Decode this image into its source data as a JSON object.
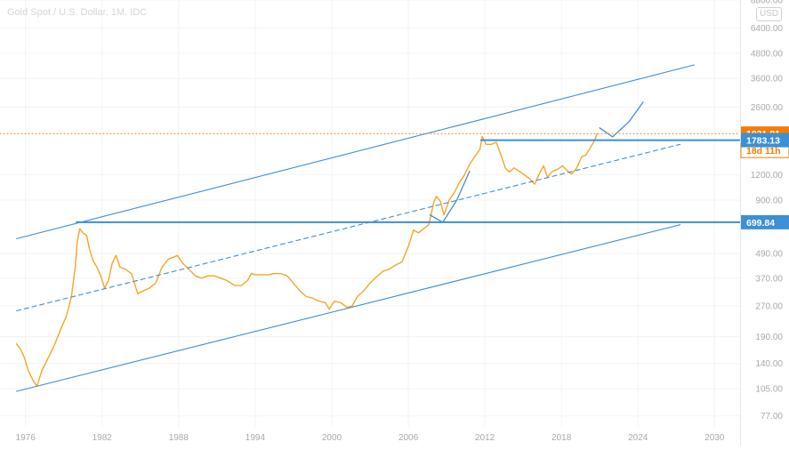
{
  "header": {
    "title": "Gold Spot / U.S. Dollar, 1M, IDC",
    "currency_badge": "USD"
  },
  "colors": {
    "price": "#f5a623",
    "channel": "#3d8fd6",
    "last_price_tag": "#f57c00",
    "countdown_tag": "#ffb74d",
    "level_tag": "#3d8fd6",
    "axis_text": "#a9a9a9"
  },
  "chart_data": {
    "type": "line",
    "title": "Gold Spot / U.S. Dollar, 1M, IDC",
    "y_scale": "log",
    "ylim": [
      68,
      8800
    ],
    "xlim": [
      1974.0,
      2032.0
    ],
    "x_ticks": [
      "1976",
      "1982",
      "1988",
      "1994",
      "2000",
      "2006",
      "2012",
      "2018",
      "2024",
      "2030"
    ],
    "y_ticks": [
      "8800.00",
      "6400.00",
      "4800.00",
      "3600.00",
      "2600.00",
      "1200.00",
      "900.00",
      "490.00",
      "370.00",
      "270.00",
      "190.00",
      "140.00",
      "105.00",
      "77.00"
    ],
    "grid": true,
    "series": [
      {
        "kind": "price",
        "x": [
          1975.3,
          1975.6,
          1975.9,
          1976.2,
          1976.6,
          1976.9,
          1977.3,
          1977.8,
          1978.3,
          1978.8,
          1979.2,
          1979.6,
          1979.9,
          1980.05,
          1980.25,
          1980.5,
          1980.8,
          1981.0,
          1981.3,
          1981.6,
          1981.9,
          1982.2,
          1982.5,
          1982.8,
          1983.1,
          1983.4,
          1983.8,
          1984.3,
          1984.8,
          1985.2,
          1985.7,
          1986.2,
          1986.7,
          1987.2,
          1987.6,
          1987.9,
          1988.3,
          1988.8,
          1989.3,
          1989.8,
          1990.3,
          1990.8,
          1991.3,
          1991.8,
          1992.4,
          1992.9,
          1993.4,
          1993.7,
          1994.0,
          1994.5,
          1995.0,
          1995.5,
          1996.0,
          1996.5,
          1997.0,
          1997.5,
          1998.0,
          1998.5,
          1999.0,
          1999.5,
          1999.8,
          2000.2,
          2000.7,
          2001.2,
          2001.6,
          2002.0,
          2002.5,
          2003.0,
          2003.5,
          2004.0,
          2004.5,
          2005.0,
          2005.5,
          2006.0,
          2006.4,
          2006.8,
          2007.2,
          2007.6,
          2008.0,
          2008.2,
          2008.5,
          2008.8,
          2009.2,
          2009.6,
          2010.0,
          2010.4,
          2010.8,
          2011.2,
          2011.6,
          2011.8,
          2012.1,
          2012.5,
          2012.9,
          2013.3,
          2013.6,
          2013.9,
          2014.3,
          2014.7,
          2015.1,
          2015.5,
          2015.9,
          2016.3,
          2016.6,
          2016.9,
          2017.3,
          2017.7,
          2018.1,
          2018.5,
          2018.8,
          2019.2,
          2019.6,
          2019.9,
          2020.3,
          2020.6,
          2020.8
        ],
        "y": [
          175,
          165,
          150,
          130,
          115,
          108,
          130,
          150,
          175,
          210,
          240,
          300,
          420,
          560,
          650,
          620,
          600,
          520,
          450,
          420,
          380,
          330,
          360,
          440,
          480,
          420,
          410,
          390,
          310,
          320,
          330,
          350,
          420,
          460,
          470,
          480,
          440,
          410,
          380,
          370,
          380,
          380,
          370,
          360,
          340,
          340,
          360,
          390,
          385,
          385,
          385,
          390,
          390,
          380,
          350,
          320,
          300,
          295,
          285,
          280,
          260,
          285,
          280,
          265,
          270,
          300,
          320,
          350,
          375,
          400,
          410,
          430,
          445,
          530,
          640,
          620,
          650,
          680,
          880,
          940,
          890,
          760,
          900,
          980,
          1100,
          1200,
          1350,
          1480,
          1600,
          1860,
          1700,
          1700,
          1740,
          1480,
          1300,
          1240,
          1300,
          1250,
          1200,
          1150,
          1080,
          1230,
          1330,
          1170,
          1250,
          1280,
          1330,
          1250,
          1210,
          1300,
          1480,
          1500,
          1650,
          1780,
          1921.81
        ]
      },
      {
        "kind": "channel",
        "style": "solid",
        "x": [
          1975.3,
          2028.4
        ],
        "y": [
          580,
          4200
        ]
      },
      {
        "kind": "channel",
        "style": "dashed",
        "x": [
          1975.3,
          2027.3
        ],
        "y": [
          255,
          1700
        ]
      },
      {
        "kind": "channel",
        "style": "solid",
        "x": [
          1975.3,
          2027.3
        ],
        "y": [
          102,
          680
        ]
      },
      {
        "kind": "level",
        "style": "solid",
        "x": [
          1980.0,
          2032.0
        ],
        "y": [
          699.84,
          699.84
        ]
      },
      {
        "kind": "level",
        "style": "solid",
        "x": [
          2011.7,
          2032.0
        ],
        "y": [
          1783.13,
          1783.13
        ]
      },
      {
        "kind": "projection",
        "style": "solid",
        "x": [
          2007.7,
          2008.7,
          2009.8,
          2010.8
        ],
        "y": [
          760,
          700,
          900,
          1250
        ]
      },
      {
        "kind": "projection",
        "style": "solid",
        "x": [
          2021.0,
          2022.0,
          2023.3,
          2024.4
        ],
        "y": [
          2050,
          1850,
          2200,
          2750
        ]
      },
      {
        "kind": "last-price",
        "style": "dotted",
        "x": [
          1974.0,
          2032.0
        ],
        "y": [
          1921.81,
          1921.81
        ]
      }
    ],
    "annotations": [
      {
        "label": "1921.81",
        "kind": "last-price",
        "value": 1921.81
      },
      {
        "label": "18d 11h",
        "kind": "countdown",
        "value": 1921.81
      },
      {
        "label": "1783.13",
        "kind": "level",
        "value": 1783.13
      },
      {
        "label": "699.84",
        "kind": "level",
        "value": 699.84
      }
    ]
  }
}
